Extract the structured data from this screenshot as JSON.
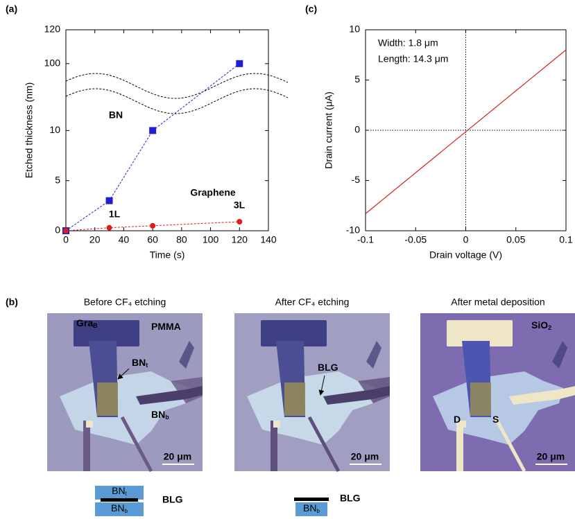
{
  "chart_data": [
    {
      "type": "line",
      "label": "(a)",
      "x_label": "Time (s)",
      "y_label": "Etched thickness (nm)",
      "xlim": [
        0,
        140
      ],
      "xticks": [
        0,
        20,
        40,
        60,
        80,
        100,
        120,
        140
      ],
      "ylim": [
        0,
        120
      ],
      "ybreak": [
        13,
        95
      ],
      "yticks": [
        0,
        5,
        10,
        100,
        120
      ],
      "series": [
        {
          "name": "BN",
          "color": "#1f1fd0",
          "marker": "square",
          "x": [
            0,
            30,
            60,
            120
          ],
          "values": [
            0,
            3,
            10,
            100
          ]
        },
        {
          "name": "Graphene",
          "color": "#e01b1b",
          "marker": "circle",
          "x": [
            0,
            30,
            60,
            120
          ],
          "values": [
            0,
            0.3,
            0.5,
            0.9
          ]
        }
      ],
      "annotations": [
        "1L",
        "3L"
      ]
    },
    {
      "type": "line",
      "label": "(c)",
      "x_label": "Drain voltage (V)",
      "y_label": "Drain current (μA)",
      "xlim": [
        -0.1,
        0.1
      ],
      "xticks": [
        -0.1,
        -0.05,
        0,
        0.05,
        0.1
      ],
      "ylim": [
        -10,
        10
      ],
      "yticks": [
        -10,
        -5,
        0,
        5,
        10
      ],
      "zero_lines": true,
      "series": [
        {
          "color": "#d62020",
          "x": [
            -0.1,
            0.1
          ],
          "values": [
            -8.3,
            8
          ]
        }
      ],
      "annotations": [
        "Width: 1.8 μm",
        "Length: 14.3 μm"
      ]
    }
  ],
  "panel_b": {
    "label": "(b)",
    "images": [
      {
        "title": "Before CF₄ etching",
        "labels": [
          {
            "text": "Gra",
            "sub": "B"
          },
          {
            "text": "PMMA",
            "sub": ""
          },
          {
            "text": "BN",
            "sub": "t"
          },
          {
            "text": "BN",
            "sub": "b"
          }
        ],
        "scale_bar": "20 μm"
      },
      {
        "title": "After CF₄ etching",
        "labels": [
          {
            "text": "BLG",
            "sub": ""
          }
        ],
        "scale_bar": "20 μm"
      },
      {
        "title": "After metal deposition",
        "labels": [
          {
            "text": "SiO",
            "sub": "2"
          },
          {
            "text": "D",
            "sub": ""
          },
          {
            "text": "S",
            "sub": ""
          }
        ],
        "scale_bar": "20 μm"
      }
    ],
    "schematics": [
      {
        "layers": [
          {
            "text": "BN",
            "sub": "t"
          },
          {
            "text": "BN",
            "sub": "b"
          }
        ],
        "label": "BLG"
      },
      {
        "layers": [
          {
            "text": "BN",
            "sub": "b"
          }
        ],
        "label": "BLG"
      }
    ]
  }
}
